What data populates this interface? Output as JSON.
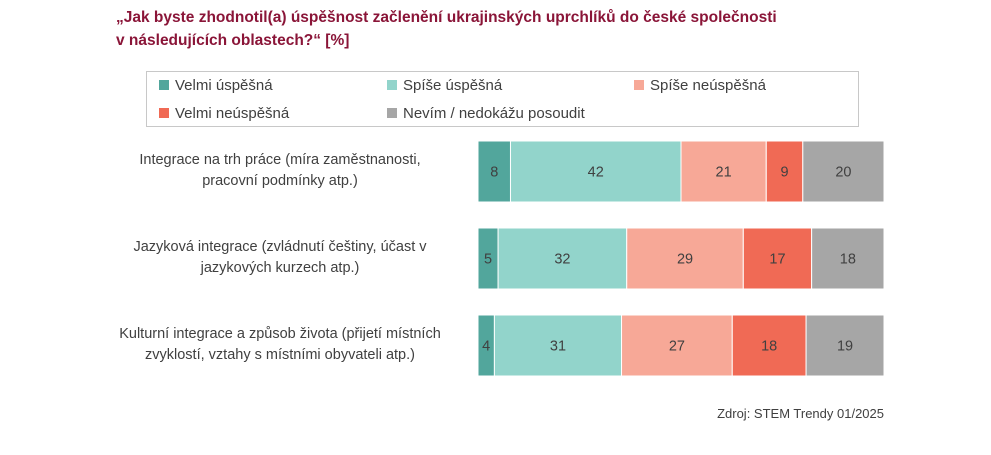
{
  "title_line1": "„Jak byste zhodnotil(a) úspěšnost začlenění ukrajinských uprchlíků do české společnosti",
  "title_line2": "v následujících oblastech?“ [%]",
  "source": "Zdroj: STEM Trendy 01/2025",
  "chart_data": {
    "type": "bar",
    "orientation": "horizontal",
    "stacked": true,
    "title": "„Jak byste zhodnotil(a) úspěšnost začlenění ukrajinských uprchlíků do české společnosti v následujících oblastech?“ [%]",
    "legend_position": "top",
    "xlim": [
      0,
      100
    ],
    "grid": false,
    "categories": [
      "Integrace na trh práce (míra zaměstnanosti, pracovní podmínky atp.)",
      "Jazyková integrace (zvládnutí češtiny, účast v jazykových kurzech atp.)",
      "Kulturní integrace a způsob života (přijetí místních zvyklostí, vztahy s místními obyvateli atp.)"
    ],
    "category_lines": [
      [
        "Integrace na trh práce (míra zaměstnanosti,",
        "pracovní podmínky atp.)"
      ],
      [
        "Jazyková integrace (zvládnutí češtiny, účast v",
        "jazykových kurzech atp.)"
      ],
      [
        "Kulturní integrace a způsob života (přijetí místních",
        "zvyklostí, vztahy s místními obyvateli atp.)"
      ]
    ],
    "series": [
      {
        "name": "Velmi úspěšná",
        "color": "#52a69c",
        "values": [
          8,
          5,
          4
        ]
      },
      {
        "name": "Spíše úspěšná",
        "color": "#92d4cb",
        "values": [
          42,
          32,
          31
        ]
      },
      {
        "name": "Spíše neúspěšná",
        "color": "#f7a897",
        "values": [
          21,
          29,
          27
        ]
      },
      {
        "name": "Velmi neúspěšná",
        "color": "#f06a55",
        "values": [
          9,
          17,
          18
        ]
      },
      {
        "name": "Nevím / nedokážu posoudit",
        "color": "#a6a6a6",
        "values": [
          20,
          18,
          19
        ]
      }
    ]
  }
}
